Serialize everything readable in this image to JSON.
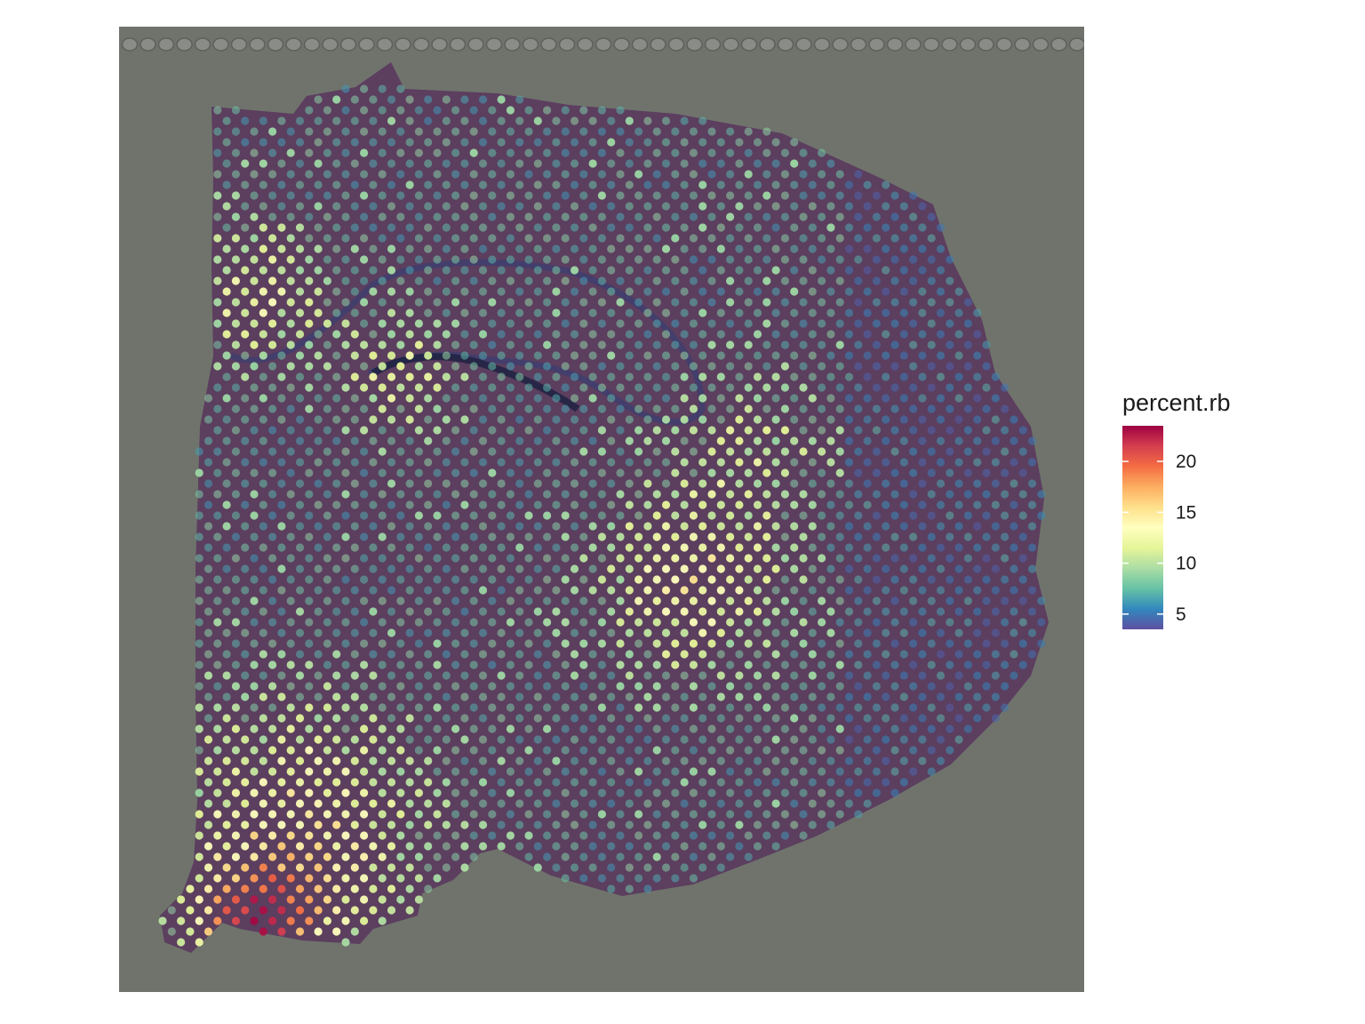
{
  "chart_data": {
    "type": "scatter",
    "description_free": true,
    "title": "",
    "xlabel": "",
    "ylabel": "",
    "grid": false,
    "legend_placement": "right",
    "legend": {
      "title": "percent.rb",
      "ticks": [
        5,
        10,
        15,
        20
      ],
      "range": [
        3.5,
        23.5
      ]
    },
    "colormap": [
      "#5E4FA2",
      "#3288BD",
      "#66C2A5",
      "#ABDDA4",
      "#E6F598",
      "#FFFFBF",
      "#FEE08B",
      "#FDAE61",
      "#F46D43",
      "#D53E4F",
      "#9E0142"
    ],
    "colors": {
      "background_image": "#6f736c",
      "tissue": "#5a3a5e",
      "fiducial": "#8a8d87"
    }
  }
}
